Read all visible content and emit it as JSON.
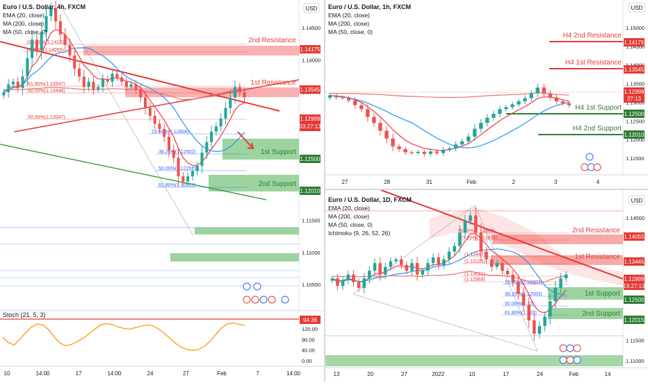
{
  "colors": {
    "up": "#26a69a",
    "down": "#ef5350",
    "ema": "#f23645",
    "ma200": "#e57373",
    "ma50": "#2196f3",
    "resistance": "#ef5350",
    "support": "#4caf50",
    "trend_red": "#e53935",
    "trend_green": "#43a047",
    "stoch": "#ff9800",
    "fib": "#2962ff"
  },
  "left_chart": {
    "title": "Euro / U.S. Dollar, 4h, FXCM",
    "legend": [
      "EMA (20, close)",
      "MA (200, close)",
      "MA (50, close, 0)"
    ],
    "currency": "USD",
    "y_ticks": [
      "1.14500",
      "1.14000",
      "1.13500",
      "1.13000",
      "1.12500",
      "1.12000",
      "1.11500",
      "1.11000",
      "1.10500"
    ],
    "price_tags": [
      {
        "value": "1.14175",
        "kind": "resistance"
      },
      {
        "value": "1.13545",
        "kind": "resistance"
      },
      {
        "value": "1.12999",
        "kind": "current"
      },
      {
        "value": "03:27:13",
        "kind": "timer"
      },
      {
        "value": "1.12500",
        "kind": "support"
      },
      {
        "value": "1.12010",
        "kind": "support"
      }
    ],
    "zone_labels": [
      "2nd Resistance",
      "1st Resistance",
      "1st Support",
      "2nd Support"
    ],
    "fib_labels": [
      "100.00%(1.14182)",
      "78.60%(1.14055)",
      "61.80%(1.13547)",
      "50.00%(1.13448)",
      "50.00%(1.13047)",
      "23.60%(1.12806)",
      "38.20%(1.12502)",
      "50.00%(1.12257)",
      "61.80%(1.12011)"
    ],
    "stoch": {
      "label": "Stoch (21, 5, 3)",
      "y_ticks": [
        "120.00",
        "80.00",
        "40.00",
        "0.00"
      ],
      "value_tag": "94.36",
      "values": [
        62,
        48,
        42,
        58,
        75,
        90,
        98,
        95,
        82,
        62,
        46,
        40,
        44,
        52,
        60,
        72,
        84,
        96,
        99,
        96,
        90,
        86,
        84,
        88,
        92,
        95,
        93,
        85,
        73,
        60,
        46,
        36,
        30,
        28,
        30,
        38,
        52,
        70,
        88,
        98,
        100,
        97,
        94
      ]
    },
    "x_ticks": [
      "10",
      "14:00",
      "17",
      "14:00",
      "24",
      "27",
      "Feb",
      "7",
      "14:00"
    ]
  },
  "right_top_chart": {
    "title": "Euro / U.S. Dollar, 1h, FXCM",
    "legend": [
      "EMA (20, close)",
      "MA (200, close)",
      "MA (50, close, 0)"
    ],
    "currency": "USD",
    "y_ticks": [
      "1.15000",
      "1.14500",
      "1.14000",
      "1.13500",
      "1.13000",
      "1.12500",
      "1.12000",
      "1.11500"
    ],
    "level_labels": [
      "H4 2nd Resistance",
      "H4 1st Resistance",
      "H4 1st Support",
      "H4 2nd Support"
    ],
    "price_tags": [
      {
        "value": "1.14175",
        "kind": "resistance"
      },
      {
        "value": "1.13545",
        "kind": "resistance"
      },
      {
        "value": "1.12999",
        "kind": "current"
      },
      {
        "value": "27:13",
        "kind": "timer"
      },
      {
        "value": "1.12500",
        "kind": "support"
      },
      {
        "value": "1.12010",
        "kind": "support"
      }
    ],
    "x_ticks": [
      "27",
      "28",
      "31",
      "Feb",
      "2",
      "3",
      "4"
    ]
  },
  "right_bottom_chart": {
    "title": "Euro / U.S. Dollar, 1D, FXCM",
    "legend": [
      "EMA (20, close)",
      "MA (200, close)",
      "MA (50, close, 0)",
      "Ichimoku (9, 26, 52, 26)"
    ],
    "currency": "USD",
    "y_ticks": [
      "1.14500",
      "1.14000",
      "1.13500",
      "1.13000",
      "1.12500",
      "1.12000",
      "1.11500",
      "1.11000"
    ],
    "zone_labels": [
      "2nd Resistance",
      "1st Resistance",
      "1st Support",
      "2nd Support"
    ],
    "price_tags": [
      {
        "value": "1.14055",
        "kind": "resistance"
      },
      {
        "value": "1.13445",
        "kind": "resistance"
      },
      {
        "value": "1.12999",
        "kind": "current"
      },
      {
        "value": "19:27:13",
        "kind": "timer"
      },
      {
        "value": "1.12500",
        "kind": "support"
      },
      {
        "value": "1.12015",
        "kind": "support"
      }
    ],
    "fib_labels": [
      "78.60%(1.13965)",
      "127.20%(1.13892)",
      "(1.13447)",
      "(1.13155)",
      "(1.13021)",
      "(1.12869)",
      "23.60%(1.12807)",
      "38.20%(1.12503)",
      "50.00%(1.12)",
      "61.80%(1.120)"
    ],
    "x_ticks": [
      "13",
      "20",
      "27",
      "2022",
      "10",
      "17",
      "24",
      "Feb",
      "14"
    ]
  },
  "chart_data": [
    {
      "type": "candlestick",
      "title": "Euro / U.S. Dollar, 4h, FXCM",
      "ylim": [
        1.103,
        1.1475
      ],
      "levels": {
        "resistance_2": 1.14175,
        "resistance_1": 1.13545,
        "support_1": 1.125,
        "support_2": 1.1201,
        "last": 1.12999
      },
      "close": [
        1.131,
        1.1325,
        1.133,
        1.1318,
        1.134,
        1.1375,
        1.141,
        1.139,
        1.1425,
        1.1455,
        1.147,
        1.1445,
        1.142,
        1.14,
        1.138,
        1.1355,
        1.134,
        1.132,
        1.133,
        1.1315,
        1.132,
        1.1335,
        1.133,
        1.1345,
        1.1338,
        1.133,
        1.132,
        1.1325,
        1.1315,
        1.13,
        1.128,
        1.1265,
        1.125,
        1.124,
        1.1225,
        1.12,
        1.1185,
        1.115,
        1.114,
        1.115,
        1.116,
        1.117,
        1.1195,
        1.1215,
        1.1235,
        1.1245,
        1.126,
        1.128,
        1.13,
        1.132,
        1.131,
        1.13
      ]
    },
    {
      "type": "candlestick",
      "title": "Euro / U.S. Dollar, 1h, FXCM",
      "ylim": [
        1.1135,
        1.1515
      ],
      "close": [
        1.1325,
        1.132,
        1.1318,
        1.1312,
        1.13,
        1.129,
        1.127,
        1.1255,
        1.1235,
        1.1215,
        1.1195,
        1.1188,
        1.118,
        1.1178,
        1.1181,
        1.1176,
        1.1182,
        1.1178,
        1.1186,
        1.119,
        1.12,
        1.1208,
        1.122,
        1.124,
        1.1255,
        1.1268,
        1.1278,
        1.129,
        1.1295,
        1.1302,
        1.131,
        1.1318,
        1.133,
        1.1345,
        1.133,
        1.132,
        1.131,
        1.1305,
        1.13
      ]
    },
    {
      "type": "candlestick",
      "title": "Euro / U.S. Dollar, 1D, FXCM",
      "ylim": [
        1.1085,
        1.1485
      ],
      "close": [
        1.129,
        1.127,
        1.1285,
        1.13,
        1.128,
        1.1265,
        1.129,
        1.131,
        1.133,
        1.13,
        1.132,
        1.1335,
        1.134,
        1.1325,
        1.131,
        1.133,
        1.13,
        1.131,
        1.133,
        1.1345,
        1.1325,
        1.134,
        1.136,
        1.1375,
        1.141,
        1.144,
        1.1455,
        1.141,
        1.136,
        1.134,
        1.132,
        1.133,
        1.131,
        1.13,
        1.128,
        1.125,
        1.122,
        1.118,
        1.1145,
        1.1165,
        1.119,
        1.123,
        1.1265,
        1.129,
        1.13
      ]
    }
  ]
}
